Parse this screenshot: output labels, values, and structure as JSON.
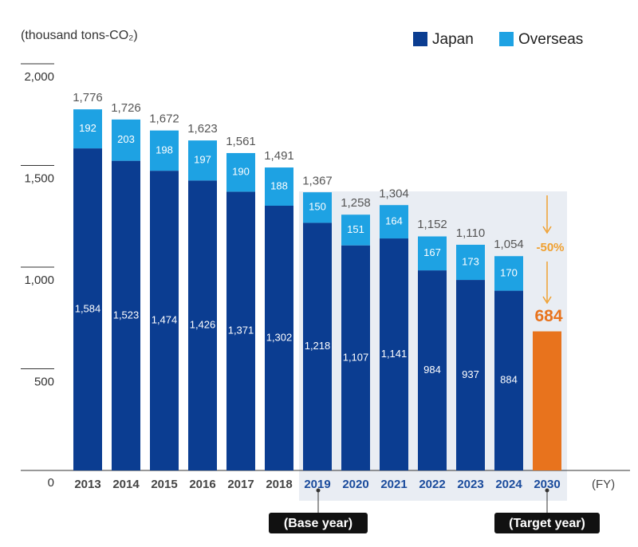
{
  "chart_data": {
    "type": "bar",
    "stacked": true,
    "y_label": "(thousand tons-CO₂)",
    "x_label": "(FY)",
    "categories": [
      "2013",
      "2014",
      "2015",
      "2016",
      "2017",
      "2018",
      "2019",
      "2020",
      "2021",
      "2022",
      "2023",
      "2024",
      "2030"
    ],
    "series": [
      {
        "name": "Japan",
        "color": "#0b3d91",
        "values": [
          1584,
          1523,
          1474,
          1426,
          1371,
          1302,
          1218,
          1107,
          1141,
          984,
          937,
          884,
          null
        ],
        "value_labels": [
          "1,584",
          "1,523",
          "1,474",
          "1,426",
          "1,371",
          "1,302",
          "1,218",
          "1,107",
          "1,141",
          "984",
          "937",
          "884",
          null
        ]
      },
      {
        "name": "Overseas",
        "color": "#1ea2e3",
        "values": [
          192,
          203,
          198,
          197,
          190,
          188,
          150,
          151,
          164,
          167,
          173,
          170,
          null
        ]
      }
    ],
    "totals": [
      1776,
      1726,
      1672,
      1623,
      1561,
      1491,
      1367,
      1258,
      1304,
      1152,
      1110,
      1054,
      null
    ],
    "total_labels": [
      "1,776",
      "1,726",
      "1,672",
      "1,623",
      "1,561",
      "1,491",
      "1,367",
      "1,258",
      "1,304",
      "1,152",
      "1,110",
      "1,054",
      null
    ],
    "target": {
      "value": 684,
      "color": "#e8731d",
      "reduction_label": "-50%"
    },
    "annotations": [
      "(Base year)",
      "(Target year)"
    ],
    "ylim": [
      0,
      2000
    ],
    "yticks": [
      0,
      500,
      {
        "value": 1000,
        "label": "1,000"
      },
      {
        "value": 1500,
        "label": "1,500"
      },
      {
        "value": 2000,
        "label": "2,000"
      }
    ]
  }
}
